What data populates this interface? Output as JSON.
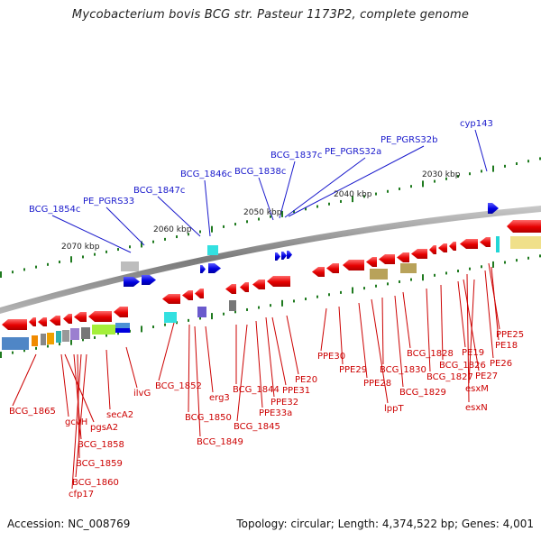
{
  "title": "Mycobacterium bovis BCG str. Pasteur 1173P2, complete genome",
  "footer": {
    "accession": "Accession: NC_008769",
    "summary": "Topology: circular; Length: 4,374,522 bp; Genes: 4,001"
  },
  "scale_labels": [
    "2030 kbp",
    "2040 kbp",
    "2050 kbp",
    "2060 kbp",
    "2070 kbp"
  ],
  "top_labels": [
    "cyp143",
    "PE_PGRS32b",
    "PE_PGRS32a",
    "BCG_1837c",
    "BCG_1838c",
    "BCG_1846c",
    "BCG_1847c",
    "PE_PGRS33",
    "BCG_1854c"
  ],
  "bottom_labels": [
    "BCG_1865",
    "gcvH",
    "pgsA2",
    "BCG_1858",
    "BCG_1859",
    "BCG_1860",
    "cfp17",
    "secA2",
    "ilvG",
    "BCG_1852",
    "BCG_1850",
    "erg3",
    "BCG_1849",
    "BCG_1844",
    "BCG_1845",
    "PPE33a",
    "PPE32",
    "PPE31",
    "PE20",
    "PPE30",
    "PPE29",
    "PPE28",
    "lppT",
    "BCG_1830",
    "BCG_1829",
    "BCG_1828",
    "BCG_1827",
    "BCG_1826",
    "PE19",
    "PE27",
    "esxM",
    "esxN",
    "PE26",
    "PE18",
    "PPE25"
  ],
  "colors": {
    "forward_gene": "#0000dd",
    "reverse_gene": "#ee0000",
    "top_label": "#1a1acc",
    "bottom_label": "#cc0000",
    "backbone": "#8a8a8a",
    "tick": "#1f7a1f"
  }
}
